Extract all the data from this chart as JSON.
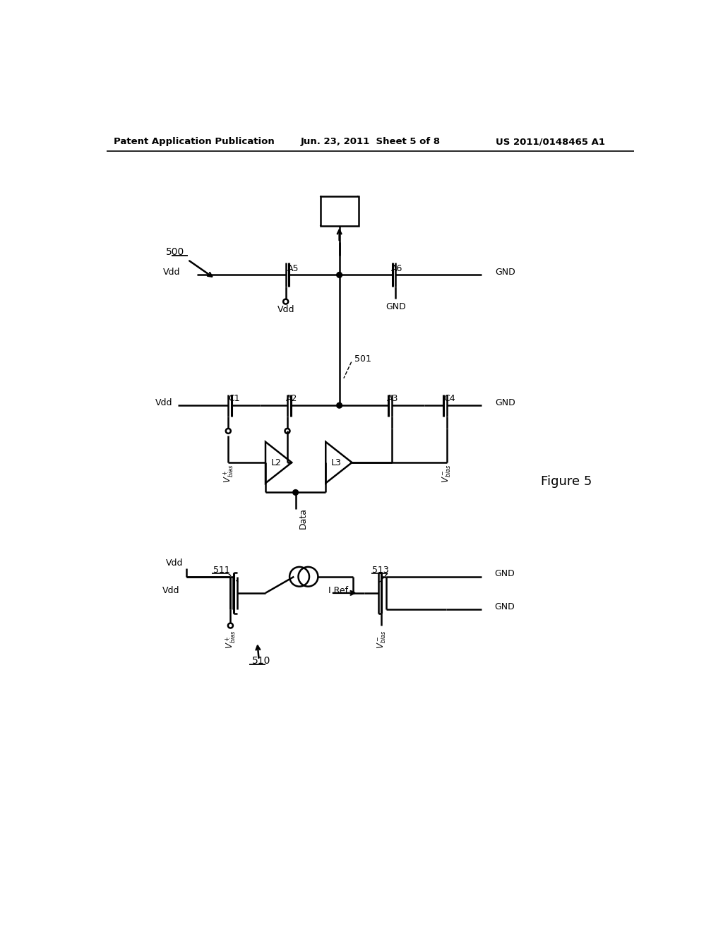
{
  "title_left": "Patent Application Publication",
  "title_mid": "Jun. 23, 2011  Sheet 5 of 8",
  "title_right": "US 2011/0148465 A1",
  "fig_label": "Figure 5",
  "background": "#ffffff",
  "lw": 1.8
}
